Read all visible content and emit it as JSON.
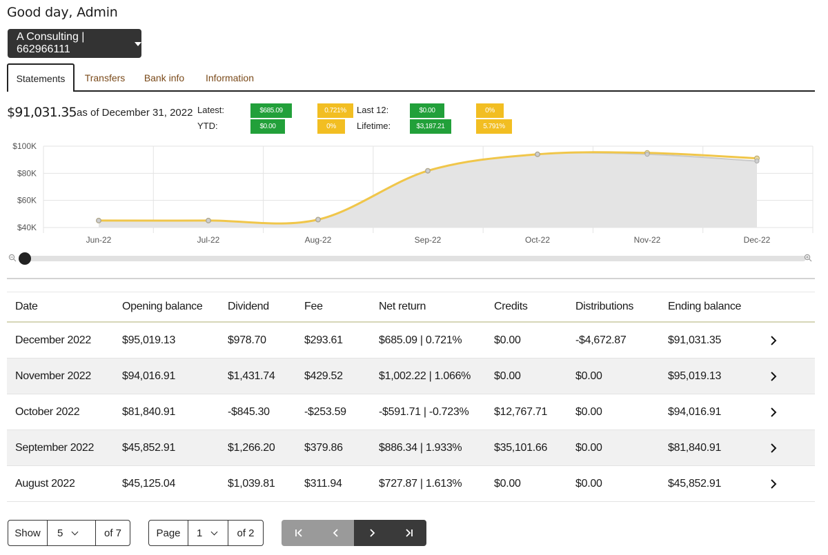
{
  "greeting": "Good day, Admin",
  "account_selector": {
    "label": "A Consulting | 662966111"
  },
  "tabs": [
    {
      "label": "Statements",
      "active": true
    },
    {
      "label": "Transfers",
      "active": false
    },
    {
      "label": "Bank info",
      "active": false
    },
    {
      "label": "Information",
      "active": false
    }
  ],
  "summary": {
    "balance": "$91,031.35",
    "as_of": "as of December 31, 2022",
    "latest_label": "Latest:",
    "latest_amount": "$685.09",
    "latest_pct": "0.721%",
    "ytd_label": "YTD:",
    "ytd_amount": "$0.00",
    "ytd_pct": "0%",
    "last12_label": "Last 12:",
    "last12_amount": "$0.00",
    "last12_pct": "0%",
    "lifetime_label": "Lifetime:",
    "lifetime_amount": "$3,187.21",
    "lifetime_pct": "5.791%"
  },
  "colors": {
    "gain": "#22a03a",
    "pct": "#f2be22",
    "line": "#f0c64a",
    "area": "#e4e4e4",
    "dark": "#333333"
  },
  "chart_data": {
    "type": "area",
    "categories": [
      "Jun-22",
      "Jul-22",
      "Aug-22",
      "Sep-22",
      "Oct-22",
      "Nov-22",
      "Dec-22"
    ],
    "series": [
      {
        "values": [
          45125,
          45125,
          45853,
          81841,
          94017,
          95019,
          91031
        ]
      },
      {
        "values": [
          45125,
          45125,
          45853,
          81841,
          94017,
          94017,
          89000
        ]
      }
    ],
    "yticks": [
      "$40K",
      "$60K",
      "$80K",
      "$100K"
    ],
    "ylim": [
      40000,
      100000
    ],
    "grid": true
  },
  "table": {
    "headers": [
      "Date",
      "Opening balance",
      "Dividend",
      "Fee",
      "Net return",
      "Credits",
      "Distributions",
      "Ending balance"
    ],
    "rows": [
      [
        "December 2022",
        "$95,019.13",
        "$978.70",
        "$293.61",
        "$685.09 | 0.721%",
        "$0.00",
        "-$4,672.87",
        "$91,031.35"
      ],
      [
        "November 2022",
        "$94,016.91",
        "$1,431.74",
        "$429.52",
        "$1,002.22 | 1.066%",
        "$0.00",
        "$0.00",
        "$95,019.13"
      ],
      [
        "October 2022",
        "$81,840.91",
        "-$845.30",
        "-$253.59",
        "-$591.71 | -0.723%",
        "$12,767.71",
        "$0.00",
        "$94,016.91"
      ],
      [
        "September 2022",
        "$45,852.91",
        "$1,266.20",
        "$379.86",
        "$886.34 | 1.933%",
        "$35,101.66",
        "$0.00",
        "$81,840.91"
      ],
      [
        "August 2022",
        "$45,125.04",
        "$1,039.81",
        "$311.94",
        "$727.87 | 1.613%",
        "$0.00",
        "$0.00",
        "$45,852.91"
      ]
    ]
  },
  "pagination": {
    "show_label": "Show",
    "page_size": "5",
    "of_rows": "of 7",
    "page_label": "Page",
    "page_number": "1",
    "of_pages": "of 2"
  }
}
